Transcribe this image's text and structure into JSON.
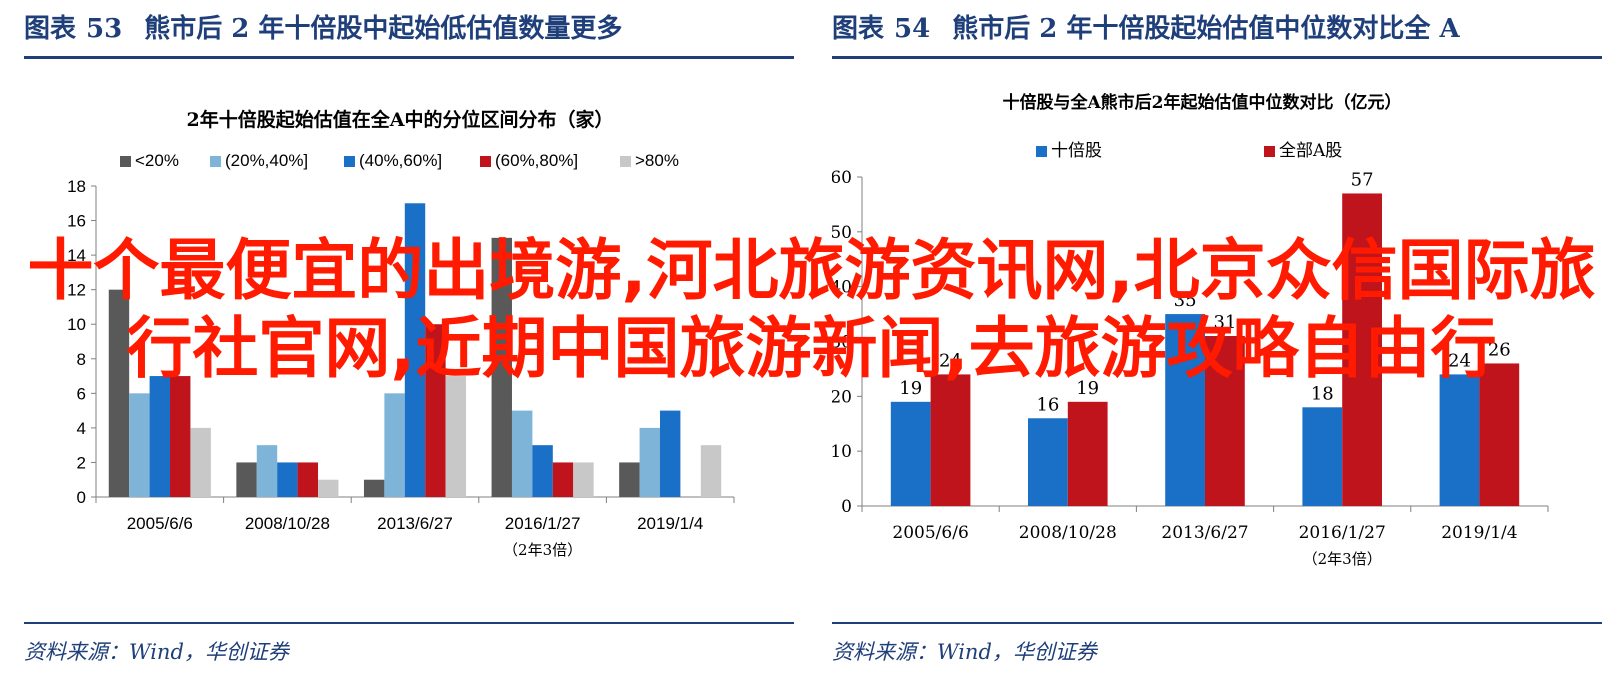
{
  "overlay_text": "十个最便宜的出境游,河北旅游资讯网,北京众信国际旅行社官网,近期中国旅游新闻,去旅游攻略自由行",
  "panels": [
    {
      "header_label": "图表",
      "header_num": "53",
      "header_title": "熊市后 2 年十倍股中起始低估值数量更多",
      "source": "资料来源：Wind，华创证券"
    },
    {
      "header_label": "图表",
      "header_num": "54",
      "header_title": "熊市后 2 年十倍股起始估值中位数对比全 A",
      "source": "资料来源：Wind，华创证券"
    }
  ],
  "chart_data": [
    {
      "type": "bar",
      "title": "2年十倍股起始估值在全A中的分位区间分布（家）",
      "categories": [
        "2005/6/6",
        "2008/10/28",
        "2013/6/27",
        "2016/1/27",
        "2019/1/4"
      ],
      "category_notes": [
        "",
        "",
        "",
        "（2年3倍）",
        ""
      ],
      "series": [
        {
          "name": "<20%",
          "color": "#595959",
          "values": [
            12,
            2,
            1,
            15,
            2
          ]
        },
        {
          "name": "(20%,40%]",
          "color": "#7fb4d9",
          "values": [
            6,
            3,
            6,
            5,
            4
          ]
        },
        {
          "name": "(40%,60%]",
          "color": "#1a6fc6",
          "values": [
            7,
            2,
            17,
            3,
            5
          ]
        },
        {
          "name": "(60%,80%]",
          "color": "#c0141c",
          "values": [
            7,
            2,
            10,
            2,
            0
          ]
        },
        {
          "name": ">80%",
          "color": "#c8c8c8",
          "values": [
            4,
            1,
            7,
            2,
            3
          ]
        }
      ],
      "ylim": [
        0,
        18
      ],
      "yticks": [
        0,
        2,
        4,
        6,
        8,
        10,
        12,
        14,
        16,
        18
      ],
      "data_labels": false,
      "legend": "top",
      "grid": false
    },
    {
      "type": "bar",
      "title": "十倍股与全A熊市后2年起始估值中位数对比（亿元）",
      "categories": [
        "2005/6/6",
        "2008/10/28",
        "2013/6/27",
        "2016/1/27",
        "2019/1/4"
      ],
      "category_notes": [
        "",
        "",
        "",
        "（2年3倍）",
        ""
      ],
      "series": [
        {
          "name": "十倍股",
          "color": "#1a6fc6",
          "values": [
            19,
            16,
            35,
            18,
            24
          ]
        },
        {
          "name": "全部A股",
          "color": "#c0141c",
          "values": [
            24,
            19,
            31,
            57,
            26
          ]
        }
      ],
      "ylim": [
        0,
        60
      ],
      "yticks": [
        0,
        10,
        20,
        30,
        40,
        50,
        60
      ],
      "data_labels": true,
      "legend": "top",
      "grid": false
    }
  ]
}
